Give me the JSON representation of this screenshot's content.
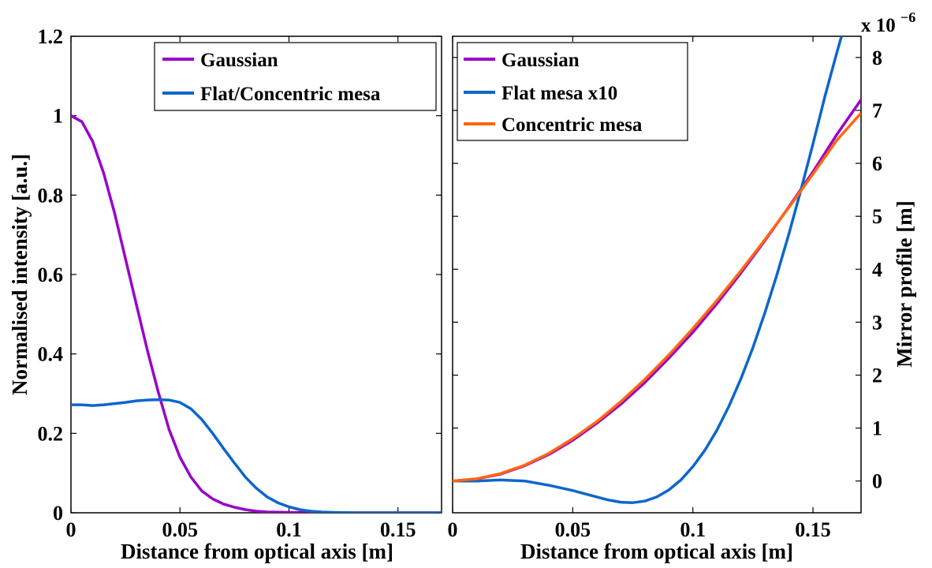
{
  "chart_data": [
    {
      "type": "line",
      "xlabel": "Distance from optical axis [m]",
      "ylabel": "Normalised intensity [a.u.]",
      "xlim": [
        0,
        0.17
      ],
      "ylim": [
        0,
        1.2
      ],
      "xticks": [
        0,
        0.05,
        0.1,
        0.15
      ],
      "xtick_labels": [
        "0",
        "0.05",
        "0.1",
        "0.15"
      ],
      "yticks": [
        0,
        0.2,
        0.4,
        0.6,
        0.8,
        1,
        1.2
      ],
      "ytick_labels": [
        "0",
        "0.2",
        "0.4",
        "0.6",
        "0.8",
        "1",
        "1.2"
      ],
      "grid": false,
      "legend_position": "top-right",
      "colors": {
        "gaussian": "#9900cc",
        "flat": "#0d66cc"
      },
      "series": [
        {
          "name": "Gaussian",
          "x": [
            0,
            0.005,
            0.01,
            0.015,
            0.02,
            0.025,
            0.03,
            0.035,
            0.04,
            0.045,
            0.05,
            0.055,
            0.06,
            0.065,
            0.07,
            0.075,
            0.08,
            0.085,
            0.09,
            0.095,
            0.1,
            0.11,
            0.12,
            0.13,
            0.14,
            0.15,
            0.16,
            0.17
          ],
          "y": [
            1.0,
            0.985,
            0.935,
            0.855,
            0.755,
            0.64,
            0.525,
            0.41,
            0.305,
            0.21,
            0.14,
            0.09,
            0.055,
            0.035,
            0.022,
            0.014,
            0.008,
            0.004,
            0.002,
            0.0015,
            0.001,
            0.0005,
            0.0002,
            0,
            0,
            0,
            0,
            0
          ]
        },
        {
          "name": "Flat/Concentric mesa",
          "x": [
            0,
            0.005,
            0.01,
            0.015,
            0.02,
            0.025,
            0.03,
            0.035,
            0.04,
            0.045,
            0.05,
            0.055,
            0.06,
            0.065,
            0.07,
            0.075,
            0.08,
            0.085,
            0.09,
            0.095,
            0.1,
            0.105,
            0.11,
            0.115,
            0.12,
            0.125,
            0.13,
            0.14,
            0.15,
            0.16,
            0.17
          ],
          "y": [
            0.272,
            0.272,
            0.27,
            0.272,
            0.275,
            0.278,
            0.282,
            0.284,
            0.285,
            0.284,
            0.278,
            0.262,
            0.235,
            0.2,
            0.162,
            0.125,
            0.09,
            0.062,
            0.04,
            0.025,
            0.015,
            0.008,
            0.004,
            0.002,
            0.001,
            0.0005,
            0,
            0,
            0,
            0,
            0
          ]
        }
      ]
    },
    {
      "type": "line",
      "xlabel": "Distance from optical axis [m]",
      "ylabel": "Mirror profile [m]",
      "y_exponent_label": "x 10",
      "y_exponent_power": "−6",
      "xlim": [
        0,
        0.17
      ],
      "ylim": [
        -0.6,
        8.4
      ],
      "xticks": [
        0,
        0.05,
        0.1,
        0.15
      ],
      "xtick_labels": [
        "0",
        "0.05",
        "0.1",
        "0.15"
      ],
      "yticks": [
        0,
        1,
        2,
        3,
        4,
        5,
        6,
        7,
        8
      ],
      "ytick_labels": [
        "0",
        "1",
        "2",
        "3",
        "4",
        "5",
        "6",
        "7",
        "8"
      ],
      "grid": false,
      "legend_position": "top-left",
      "colors": {
        "gaussian": "#9900cc",
        "flat": "#0d66cc",
        "concentric": "#ff6611"
      },
      "series": [
        {
          "name": "Gaussian",
          "x": [
            0,
            0.01,
            0.02,
            0.03,
            0.04,
            0.05,
            0.06,
            0.07,
            0.08,
            0.09,
            0.1,
            0.11,
            0.12,
            0.13,
            0.14,
            0.15,
            0.16,
            0.17
          ],
          "y": [
            0,
            0.04,
            0.13,
            0.29,
            0.5,
            0.77,
            1.09,
            1.45,
            1.86,
            2.32,
            2.81,
            3.35,
            3.93,
            4.54,
            5.18,
            5.84,
            6.55,
            7.2
          ]
        },
        {
          "name": "Flat mesa x10",
          "x": [
            0,
            0.01,
            0.02,
            0.03,
            0.04,
            0.05,
            0.06,
            0.065,
            0.07,
            0.075,
            0.08,
            0.085,
            0.09,
            0.095,
            0.1,
            0.105,
            0.11,
            0.115,
            0.12,
            0.125,
            0.13,
            0.135,
            0.14,
            0.145,
            0.15,
            0.155,
            0.16,
            0.165,
            0.17
          ],
          "y": [
            0,
            0,
            0.02,
            0.0,
            -0.08,
            -0.18,
            -0.3,
            -0.36,
            -0.4,
            -0.41,
            -0.38,
            -0.3,
            -0.17,
            0.02,
            0.27,
            0.58,
            0.96,
            1.41,
            1.93,
            2.52,
            3.18,
            3.9,
            4.67,
            5.5,
            6.37,
            7.27,
            8.1,
            8.9,
            9.7
          ]
        },
        {
          "name": "Concentric mesa",
          "x": [
            0,
            0.01,
            0.02,
            0.03,
            0.04,
            0.05,
            0.06,
            0.07,
            0.08,
            0.09,
            0.1,
            0.11,
            0.12,
            0.13,
            0.14,
            0.15,
            0.16,
            0.17
          ],
          "y": [
            0,
            0.04,
            0.14,
            0.3,
            0.52,
            0.8,
            1.12,
            1.5,
            1.92,
            2.38,
            2.88,
            3.41,
            3.97,
            4.56,
            5.17,
            5.8,
            6.44,
            6.95
          ]
        }
      ]
    }
  ]
}
